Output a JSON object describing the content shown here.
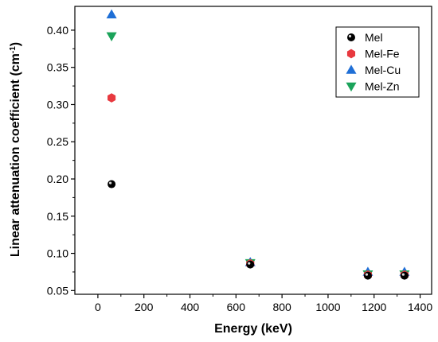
{
  "chart_data": {
    "type": "scatter",
    "xlabel": "Energy (keV)",
    "ylabel_main": "Linear attenuation coefficient (cm",
    "ylabel_sup": "-1",
    "ylabel_end": ")",
    "xlim": [
      -100,
      1450
    ],
    "ylim": [
      0.045,
      0.432
    ],
    "x_ticks": [
      0,
      200,
      400,
      600,
      800,
      1000,
      1200,
      1400
    ],
    "x_tick_labels": [
      "0",
      "200",
      "400",
      "600",
      "800",
      "1000",
      "1200",
      "1400"
    ],
    "y_ticks": [
      0.05,
      0.1,
      0.15,
      0.2,
      0.25,
      0.3,
      0.35,
      0.4
    ],
    "y_tick_labels": [
      "0.05",
      "0.10",
      "0.15",
      "0.20",
      "0.25",
      "0.30",
      "0.35",
      "0.40"
    ],
    "grid": false,
    "legend_position": "top-right",
    "series": [
      {
        "name": "Mel",
        "marker": "circle",
        "color": "#000000",
        "x": [
          59.5,
          662,
          1173,
          1332
        ],
        "y": [
          0.193,
          0.085,
          0.07,
          0.07
        ]
      },
      {
        "name": "Mel-Fe",
        "marker": "hexagon",
        "color": "#e8393f",
        "x": [
          59.5,
          662,
          1173,
          1332
        ],
        "y": [
          0.309,
          0.086,
          0.071,
          0.071
        ]
      },
      {
        "name": "Mel-Cu",
        "marker": "triangle-up",
        "color": "#1f6fd6",
        "x": [
          59.5,
          662,
          1173,
          1332
        ],
        "y": [
          0.421,
          0.088,
          0.075,
          0.075
        ]
      },
      {
        "name": "Mel-Zn",
        "marker": "triangle-down",
        "color": "#1ba35a",
        "x": [
          59.5,
          662,
          1173,
          1332
        ],
        "y": [
          0.392,
          0.087,
          0.072,
          0.072
        ]
      }
    ]
  }
}
